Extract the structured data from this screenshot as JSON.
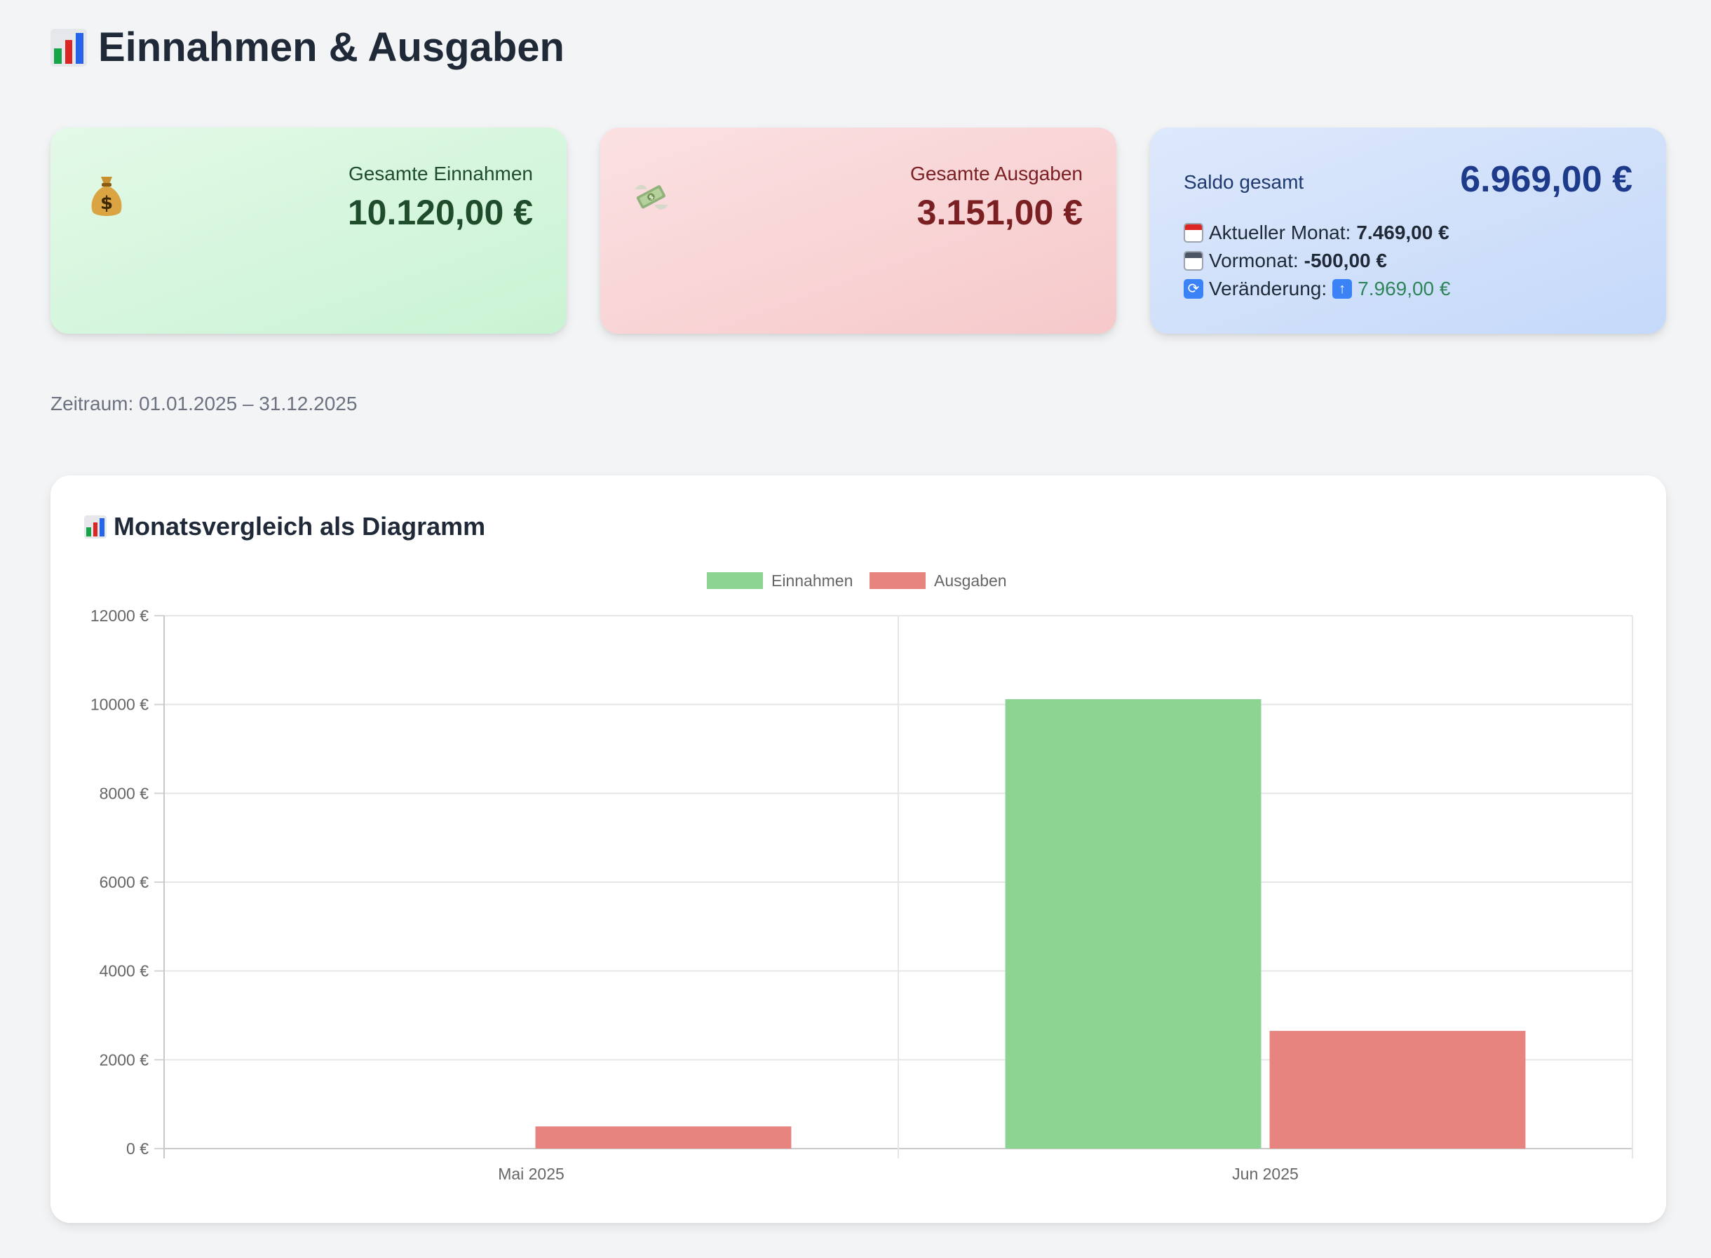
{
  "header": {
    "title": "Einnahmen & Ausgaben"
  },
  "cards": {
    "income": {
      "label": "Gesamte Einnahmen",
      "value": "10.120,00 €",
      "icon": "money-bag-icon"
    },
    "expense": {
      "label": "Gesamte Ausgaben",
      "value": "3.151,00 €",
      "icon": "money-with-wings-icon"
    },
    "balance": {
      "label": "Saldo gesamt",
      "value": "6.969,00 €",
      "current_month_label": "Aktueller Monat:",
      "current_month_value": "7.469,00 €",
      "previous_month_label": "Vormonat:",
      "previous_month_value": "-500,00 €",
      "change_label": "Veränderung:",
      "change_value": "7.969,00 €"
    }
  },
  "period": {
    "text": "Zeitraum: 01.01.2025 – 31.12.2025"
  },
  "chart_section": {
    "title": "Monatsvergleich als Diagramm"
  },
  "colors": {
    "income": "#8dd493",
    "expense": "#e8847f"
  },
  "chart_data": {
    "type": "bar",
    "categories": [
      "Mai 2025",
      "Jun 2025"
    ],
    "series": [
      {
        "name": "Einnahmen",
        "values": [
          0,
          10120
        ]
      },
      {
        "name": "Ausgaben",
        "values": [
          500,
          2651
        ]
      }
    ],
    "ylim": [
      0,
      12000
    ],
    "yticks": [
      0,
      2000,
      4000,
      6000,
      8000,
      10000,
      12000
    ],
    "y_tick_suffix": " €",
    "legend": "top-center",
    "grid": true
  }
}
